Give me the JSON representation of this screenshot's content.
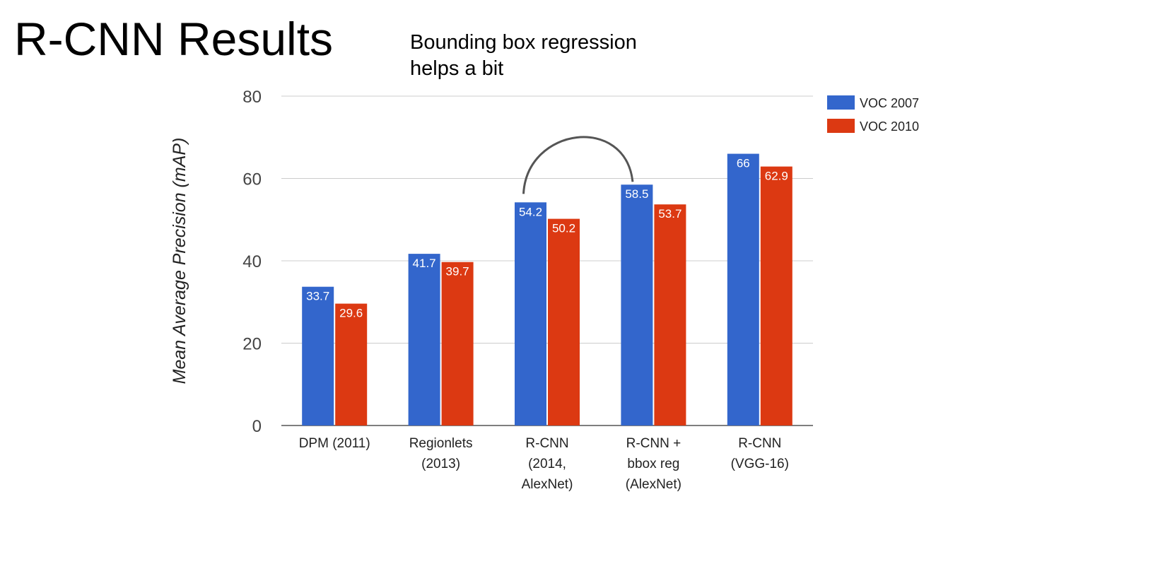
{
  "slide": {
    "title": "R-CNN Results",
    "annotation": [
      "Bounding box regression",
      "helps a bit"
    ]
  },
  "chart_data": {
    "type": "bar",
    "title": "",
    "xlabel": "",
    "ylabel": "Mean Average Precision (mAP)",
    "ylim": [
      0,
      80
    ],
    "yticks": [
      0,
      20,
      40,
      60,
      80
    ],
    "grid": true,
    "legend_position": "top-right",
    "categories": [
      [
        "DPM (2011)"
      ],
      [
        "Regionlets",
        "(2013)"
      ],
      [
        "R-CNN",
        "(2014,",
        "AlexNet)"
      ],
      [
        "R-CNN +",
        "bbox reg",
        "(AlexNet)"
      ],
      [
        "R-CNN",
        "(VGG-16)"
      ]
    ],
    "series": [
      {
        "name": "VOC 2007",
        "color": "#3366cc",
        "values": [
          33.7,
          41.7,
          54.2,
          58.5,
          66
        ],
        "labels": [
          "33.7",
          "41.7",
          "54.2",
          "58.5",
          "66"
        ]
      },
      {
        "name": "VOC 2010",
        "color": "#dc3912",
        "values": [
          29.6,
          39.7,
          50.2,
          53.7,
          62.9
        ],
        "labels": [
          "29.6",
          "39.7",
          "50.2",
          "53.7",
          "62.9"
        ]
      }
    ],
    "annotation_arc": {
      "from_category": 2,
      "to_category": 3,
      "series": "VOC 2007"
    }
  }
}
